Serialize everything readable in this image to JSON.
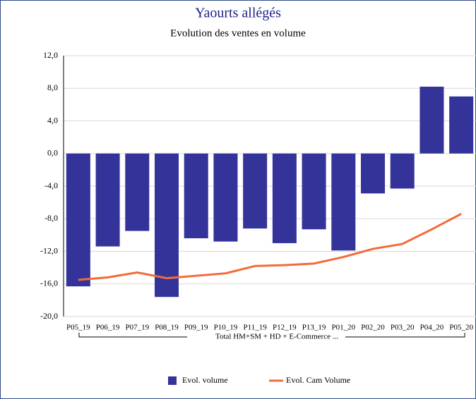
{
  "chart_data": {
    "type": "bar_line",
    "title": "Yaourts allégés",
    "subtitle": "Evolution des ventes en volume",
    "group_label": "Total HM+SM + HD + E-Commerce ...",
    "categories": [
      "P05_19",
      "P06_19",
      "P07_19",
      "P08_19",
      "P09_19",
      "P10_19",
      "P11_19",
      "P12_19",
      "P13_19",
      "P01_20",
      "P02_20",
      "P03_20",
      "P04_20",
      "P05_20"
    ],
    "series": [
      {
        "name": "Evol. volume",
        "type": "bar",
        "color": "#333399",
        "values": [
          -16.3,
          -11.4,
          -9.5,
          -17.6,
          -10.4,
          -10.8,
          -9.2,
          -11.0,
          -9.3,
          -11.9,
          -4.9,
          -4.3,
          8.2,
          7.0
        ]
      },
      {
        "name": "Evol. Cam Volume",
        "type": "line",
        "color": "#f26b3a",
        "values": [
          -15.5,
          -15.2,
          -14.6,
          -15.3,
          -15.0,
          -14.7,
          -13.8,
          -13.7,
          -13.5,
          -12.7,
          -11.7,
          -11.1,
          -9.3,
          -7.4
        ]
      }
    ],
    "ylim": [
      -20,
      12
    ],
    "yticks": [
      {
        "value": 12,
        "label": "12,0"
      },
      {
        "value": 8,
        "label": "8,0"
      },
      {
        "value": 4,
        "label": "4,0"
      },
      {
        "value": 0,
        "label": "0,0"
      },
      {
        "value": -4,
        "label": "-4,0"
      },
      {
        "value": -8,
        "label": "-8,0"
      },
      {
        "value": -12,
        "label": "-12,0"
      },
      {
        "value": -16,
        "label": "-16,0"
      },
      {
        "value": -20,
        "label": "-20,0"
      }
    ],
    "grid": true
  }
}
